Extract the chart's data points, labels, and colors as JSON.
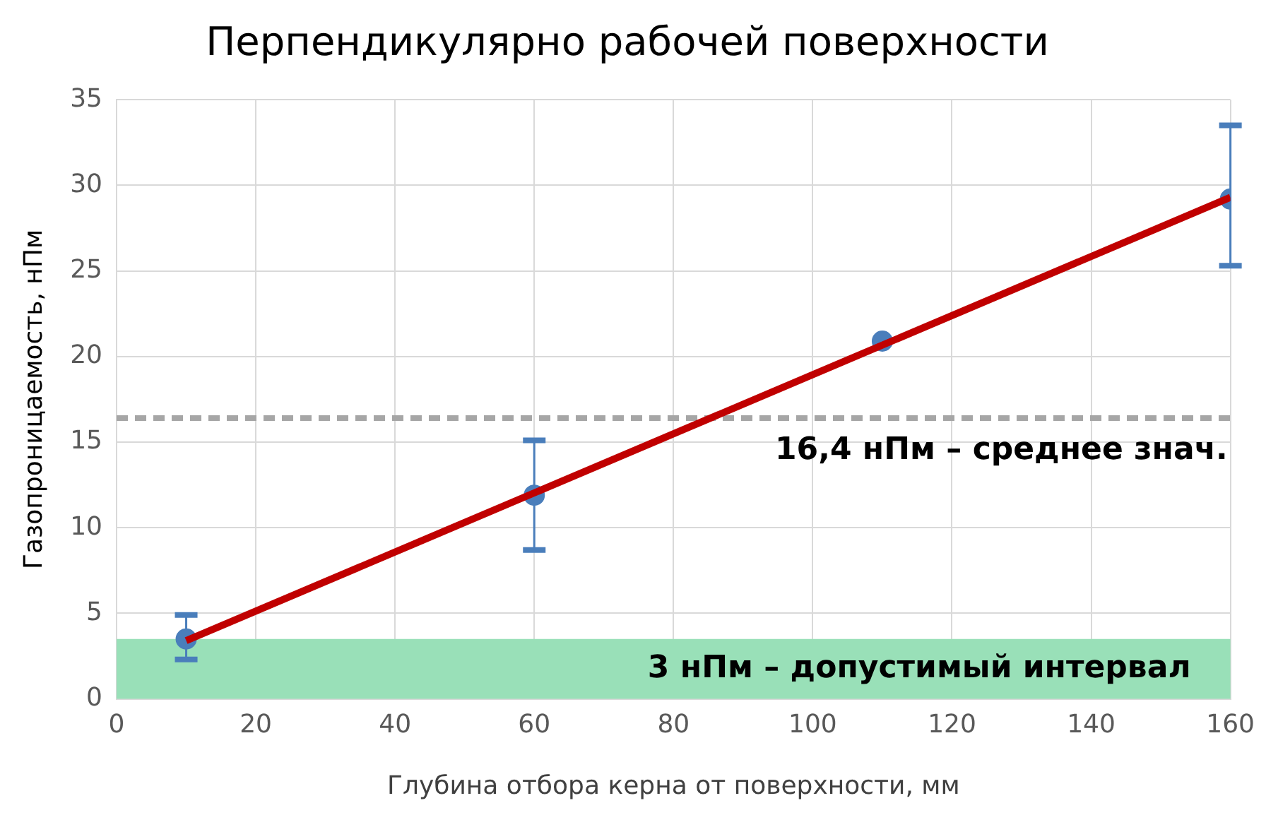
{
  "chart_data": {
    "type": "scatter",
    "title": "Перпендикулярно рабочей поверхности",
    "xlabel": "Глубина отбора керна от поверхности, мм",
    "ylabel": "Газопроницаемость, нПм",
    "xlim": [
      0,
      160
    ],
    "xticks": [
      0,
      20,
      40,
      60,
      80,
      100,
      120,
      140,
      160
    ],
    "ylim": [
      0,
      35
    ],
    "yticks": [
      0,
      5,
      10,
      15,
      20,
      25,
      30,
      35
    ],
    "grid": true,
    "legend": false,
    "marker": "circle",
    "series": [
      {
        "type": "scatter",
        "color": "#4a7ebb",
        "x": [
          10,
          60,
          110,
          160
        ],
        "values": [
          3.5,
          11.9,
          20.9,
          29.2
        ],
        "errors": [
          [
            2.3,
            4.9
          ],
          [
            8.7,
            15.1
          ],
          null,
          [
            25.3,
            33.5
          ]
        ]
      },
      {
        "type": "line",
        "color": "#c00000",
        "x": [
          10,
          160
        ],
        "values": [
          3.4,
          29.3
        ],
        "marker": "none"
      }
    ],
    "ref_lines": [
      {
        "axis": "y",
        "value": 16.4,
        "label": "16,4 нПм – среднее знач.",
        "color": "#a6a6a6",
        "line_style": "dashed"
      }
    ],
    "bands": [
      {
        "axis": "y",
        "from": 0,
        "to": 3.5,
        "label": "3 нПм – допустимый интервал",
        "color": "#99e0b8"
      }
    ]
  }
}
